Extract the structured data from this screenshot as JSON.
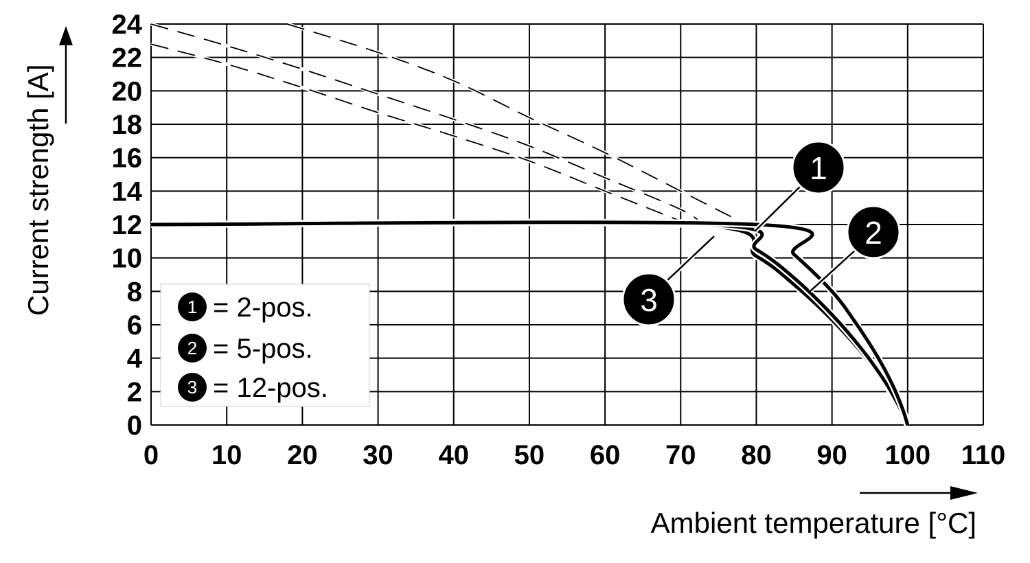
{
  "chart_data": {
    "type": "line",
    "xlabel": "Ambient temperature [°C]",
    "ylabel": "Current strength [A]",
    "xlim": [
      0,
      110
    ],
    "ylim": [
      0,
      24
    ],
    "x_ticks": [
      "0",
      "10",
      "20",
      "30",
      "40",
      "50",
      "60",
      "70",
      "80",
      "90",
      "100",
      "110"
    ],
    "y_ticks": [
      "0",
      "2",
      "4",
      "6",
      "8",
      "10",
      "12",
      "14",
      "16",
      "18",
      "20",
      "22",
      "24"
    ],
    "grid": true,
    "legend_position": "bottom-left",
    "series": [
      {
        "name": "2-pos.",
        "marker": "1",
        "line_color": "#000000",
        "rated": [
          [
            0,
            12
          ],
          [
            80,
            12
          ],
          [
            85,
            10.2
          ],
          [
            90,
            8.0
          ],
          [
            93,
            6.2
          ],
          [
            96,
            4.1
          ],
          [
            98,
            2.4
          ],
          [
            99.3,
            1.0
          ],
          [
            100,
            0
          ]
        ],
        "derating": [
          [
            18,
            24
          ],
          [
            30,
            22.3
          ],
          [
            40,
            20.6
          ],
          [
            50,
            18.4
          ],
          [
            60,
            16.3
          ],
          [
            70,
            14.0
          ],
          [
            80,
            11.7
          ]
        ]
      },
      {
        "name": "5-pos.",
        "marker": "2",
        "line_color": "#000000",
        "rated": [
          [
            0,
            12
          ],
          [
            73,
            12
          ],
          [
            80,
            10.5
          ],
          [
            85,
            8.8
          ],
          [
            90,
            6.6
          ],
          [
            94,
            4.5
          ],
          [
            97,
            2.6
          ],
          [
            99,
            1.0
          ],
          [
            100,
            0
          ]
        ],
        "derating": [
          [
            0,
            24
          ],
          [
            10,
            22.7
          ],
          [
            20,
            21.3
          ],
          [
            30,
            19.8
          ],
          [
            40,
            18.3
          ],
          [
            50,
            16.7
          ],
          [
            60,
            14.8
          ],
          [
            70,
            12.9
          ],
          [
            73,
            12
          ]
        ]
      },
      {
        "name": "12-pos.",
        "marker": "3",
        "line_color": "#000000",
        "rated": [
          [
            0,
            12
          ],
          [
            71,
            12
          ],
          [
            80,
            10.1
          ],
          [
            85,
            8.4
          ],
          [
            90,
            6.3
          ],
          [
            94,
            4.3
          ],
          [
            97,
            2.5
          ],
          [
            99,
            0.9
          ],
          [
            100,
            0
          ]
        ],
        "derating": [
          [
            0,
            22.8
          ],
          [
            10,
            21.6
          ],
          [
            20,
            20.2
          ],
          [
            30,
            18.7
          ],
          [
            40,
            17.3
          ],
          [
            50,
            15.8
          ],
          [
            60,
            14.0
          ],
          [
            70,
            12.2
          ],
          [
            71,
            12
          ]
        ]
      }
    ],
    "legend": [
      {
        "marker": "1",
        "text": "= 2-pos."
      },
      {
        "marker": "2",
        "text": "= 5-pos."
      },
      {
        "marker": "3",
        "text": "= 12-pos."
      }
    ]
  }
}
